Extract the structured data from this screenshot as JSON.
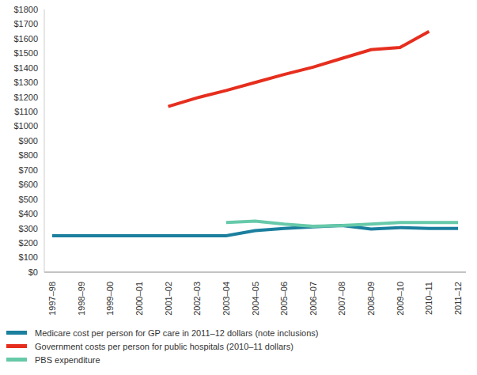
{
  "chart_data": {
    "type": "line",
    "categories": [
      "1997–98",
      "1998–99",
      "1999–00",
      "2000–01",
      "2001–02",
      "2002–03",
      "2003–04",
      "2004–05",
      "2005–06",
      "2006–07",
      "2007–08",
      "2008–09",
      "2009–10",
      "2010–11",
      "2011–12"
    ],
    "series": [
      {
        "name": "Medicare cost per person for GP care in 2011–12 dollars (note inclusions)",
        "color": "#1b7f9e",
        "values": [
          250,
          250,
          250,
          250,
          250,
          250,
          250,
          285,
          300,
          310,
          320,
          295,
          305,
          300,
          300
        ]
      },
      {
        "name": "Government costs per person for public hospitals (2010–11 dollars)",
        "color": "#e62e1e",
        "values": [
          null,
          null,
          null,
          null,
          1135,
          1195,
          1245,
          1300,
          1355,
          1405,
          1465,
          1525,
          1540,
          1650,
          null
        ]
      },
      {
        "name": "PBS expenditure",
        "color": "#66c9a9",
        "values": [
          null,
          null,
          null,
          null,
          null,
          null,
          340,
          350,
          330,
          315,
          320,
          330,
          340,
          340,
          340
        ]
      }
    ],
    "ylim": [
      0,
      1800
    ],
    "yticks": [
      {
        "value": 0,
        "label": "$0"
      },
      {
        "value": 100,
        "label": "$100"
      },
      {
        "value": 200,
        "label": "$200"
      },
      {
        "value": 300,
        "label": "$300"
      },
      {
        "value": 400,
        "label": "$400"
      },
      {
        "value": 500,
        "label": "$500"
      },
      {
        "value": 600,
        "label": "$600"
      },
      {
        "value": 700,
        "label": "$700"
      },
      {
        "value": 800,
        "label": "$800"
      },
      {
        "value": 900,
        "label": "$900"
      },
      {
        "value": 1000,
        "label": "$1000"
      },
      {
        "value": 1100,
        "label": "$1100"
      },
      {
        "value": 1200,
        "label": "$1200"
      },
      {
        "value": 1300,
        "label": "$1300"
      },
      {
        "value": 1400,
        "label": "$1400"
      },
      {
        "value": 1500,
        "label": "$1500"
      },
      {
        "value": 1600,
        "label": "$1600"
      },
      {
        "value": 1700,
        "label": "$1700"
      },
      {
        "value": 1800,
        "label": "$1800"
      }
    ],
    "grid": false,
    "legend": "bottom"
  }
}
